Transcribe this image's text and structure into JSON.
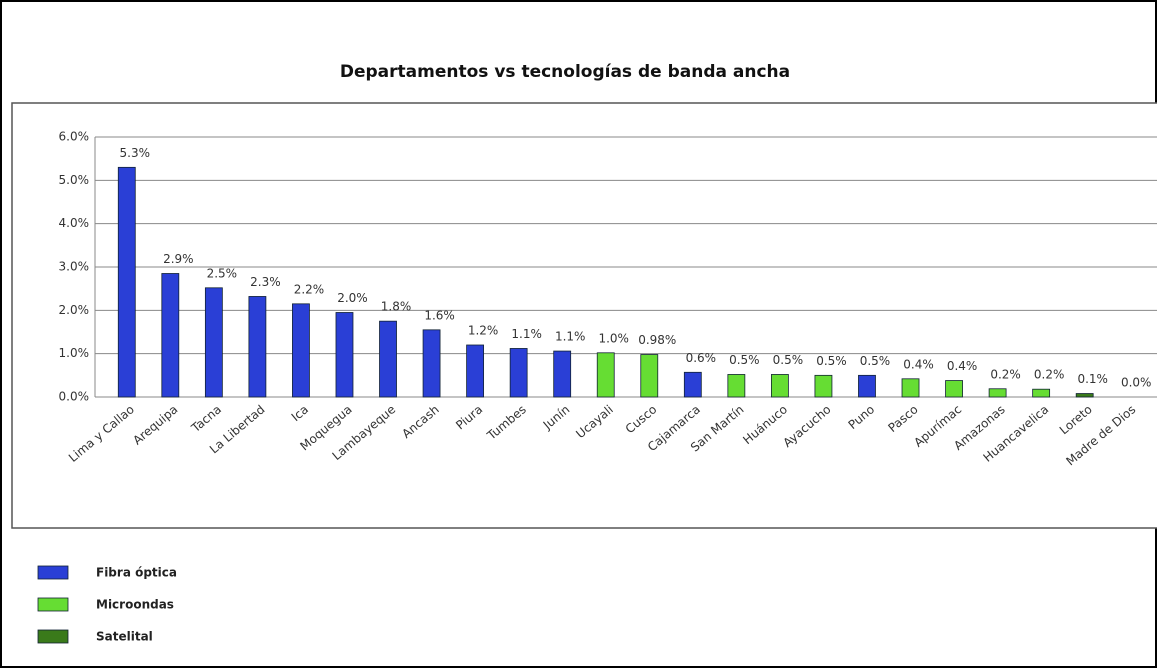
{
  "chart_data": {
    "type": "bar",
    "title": "Departamentos vs tecnologías de banda ancha",
    "categories": [
      "Lima y Callao",
      "Arequipa",
      "Tacna",
      "La Libertad",
      "Ica",
      "Moquegua",
      "Lambayeque",
      "Ancash",
      "Piura",
      "Tumbes",
      "Junín",
      "Ucayali",
      "Cusco",
      "Cajamarca",
      "San Martín",
      "Huánuco",
      "Ayacucho",
      "Puno",
      "Pasco",
      "Apurímac",
      "Amazonas",
      "Huancavelica",
      "Loreto",
      "Madre de Dios"
    ],
    "values": [
      5.3,
      2.85,
      2.52,
      2.32,
      2.15,
      1.95,
      1.75,
      1.55,
      1.2,
      1.12,
      1.06,
      1.02,
      0.98,
      0.57,
      0.52,
      0.52,
      0.5,
      0.5,
      0.42,
      0.38,
      0.19,
      0.18,
      0.08,
      0
    ],
    "value_labels": [
      "5.3%",
      "2.9%",
      "2.5%",
      "2.3%",
      "2.2%",
      "2.0%",
      "1.8%",
      "1.6%",
      "1.2%",
      "1.1%",
      "1.1%",
      "1.0%",
      "0.98%",
      "0.6%",
      "0.5%",
      "0.5%",
      "0.5%",
      "0.5%",
      "0.4%",
      "0.4%",
      "0.2%",
      "0.2%",
      "0.1%",
      "0.0%"
    ],
    "technology": [
      0,
      0,
      0,
      0,
      0,
      0,
      0,
      0,
      0,
      0,
      0,
      1,
      1,
      0,
      1,
      1,
      1,
      0,
      1,
      1,
      1,
      1,
      2,
      2
    ],
    "legend": [
      {
        "name": "Fibra óptica",
        "color": "#2a3fd6"
      },
      {
        "name": "Microondas",
        "color": "#66dd33"
      },
      {
        "name": "Satelital",
        "color": "#3a7a1a"
      }
    ],
    "ylim": [
      0,
      6
    ],
    "yticks": [
      {
        "value": 0,
        "label": "0.0%"
      },
      {
        "value": 1,
        "label": "1.0%"
      },
      {
        "value": 2,
        "label": "2.0%"
      },
      {
        "value": 3,
        "label": "3.0%"
      },
      {
        "value": 4,
        "label": "4.0%"
      },
      {
        "value": 5,
        "label": "5.0%"
      },
      {
        "value": 6,
        "label": "6.0%"
      }
    ],
    "grid": true
  }
}
